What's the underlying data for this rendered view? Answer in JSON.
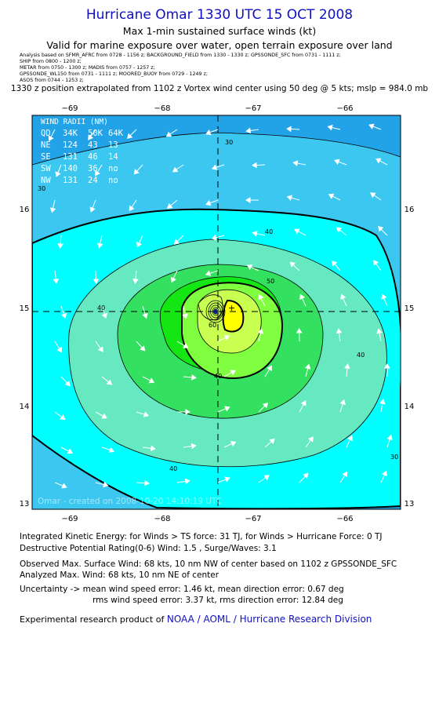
{
  "header": {
    "title": "Hurricane Omar 1330 UTC 15 OCT 2008",
    "subtitle1": "Max 1-min sustained surface winds (kt)",
    "subtitle2": "Valid for marine exposure over water, open terrain exposure over land",
    "analysis_lines": [
      "Analysis based on SFMR_AFRC from 0728 - 1156 z;  BACKGROUND_FIELD from 1330 - 1330 z;  GPSSONDE_SFC from 0731 - 1111 z;",
      "SHIP from 0800 - 1200 z;",
      "METAR from 0750 - 1300 z;   MADIS from 0757 - 1257 z;",
      "GPSSONDE_WL150 from 0731 - 1111 z;   MOORED_BUOY from 0729 - 1249 z;",
      "ASOS from 0744 - 1253 z;"
    ],
    "extrapolation": "1330 z position extrapolated from 1102 z Vortex wind center using 50 deg @ 5 kts; mslp = 984.0 mb"
  },
  "map": {
    "lon_labels": [
      "−69",
      "−68",
      "−67",
      "−66"
    ],
    "lat_labels": [
      "16",
      "15",
      "14",
      "13"
    ],
    "lon_range": [
      -69.4,
      -66.3
    ],
    "lat_range": [
      12.8,
      15.95
    ],
    "center": {
      "lon": -67.4,
      "lat": 14.95
    },
    "max_wind": {
      "lon": -67.15,
      "lat": 14.93
    },
    "contour_labels": [
      "30",
      "30",
      "40",
      "40",
      "40",
      "40",
      "50",
      "60",
      "30",
      "40"
    ],
    "colors": {
      "lt30": "#22a3e8",
      "c30": "#3bc7f0",
      "c34": "#00ffff",
      "c40": "#66e8c0",
      "c50": "#33e060",
      "c55": "#14e614",
      "c60": "#80ff40",
      "c64": "#c8ff50",
      "c68": "#ffff00"
    },
    "watermark": "Omar - created on 2008-10-20 14:10:19 UTC"
  },
  "wind_radii": {
    "title": "WIND RADII (NM)",
    "header": [
      "QD",
      "34K",
      "50K",
      "64K"
    ],
    "rows": [
      [
        "NE",
        "124",
        "43",
        "13"
      ],
      [
        "SE",
        "131",
        "46",
        "14"
      ],
      [
        "SW",
        "140",
        "36",
        "no"
      ],
      [
        "NW",
        "131",
        "24",
        "no"
      ]
    ]
  },
  "stats": {
    "ike": "Integrated Kinetic Energy:  for Winds > TS force: 31 TJ,  for Winds > Hurricane Force: 0 TJ",
    "dpr": "Destructive Potential Rating(0-6)   Wind: 1.5 , Surge/Waves: 3.1",
    "observed": "Observed Max. Surface Wind: 68 kts, 10 nm NW of center based on 1102 z GPSSONDE_SFC",
    "analyzed": "Analyzed Max. Wind: 68 kts, 10 nm NE of center",
    "uncert1": "Uncertainty -> mean wind speed error: 1.46 kt,   mean direction error: 0.67 deg",
    "uncert2": "rms wind speed error: 3.37 kt,   rms direction error: 12.84 deg",
    "credit_prefix": "Experimental research product of ",
    "credit_link": "NOAA / AOML / Hurricane Research Division"
  }
}
